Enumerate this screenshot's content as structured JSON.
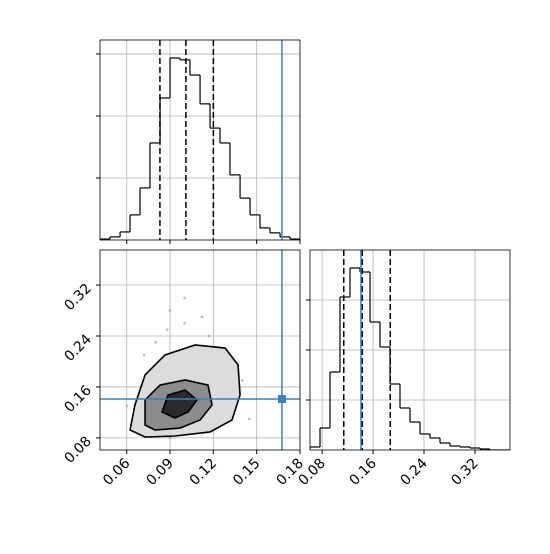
{
  "chart_data": [
    {
      "type": "histogram",
      "bins": [
        0.0415,
        0.0484,
        0.0554,
        0.0623,
        0.0692,
        0.0761,
        0.0831,
        0.09,
        0.0969,
        0.1038,
        0.1108,
        0.1177,
        0.1246,
        0.1315,
        0.1385,
        0.1454,
        0.1523,
        0.1592,
        0.1662,
        0.1731,
        0.18
      ],
      "values": [
        3,
        10,
        26,
        81,
        168,
        313,
        458,
        587,
        581,
        532,
        439,
        361,
        313,
        210,
        135,
        81,
        39,
        23,
        10,
        3
      ],
      "color": "#000000",
      "xlim": [
        0.0415,
        0.18
      ],
      "xticks": [
        0.06,
        0.09,
        0.12,
        0.15,
        0.18
      ],
      "ylim": [
        0,
        645
      ],
      "yticks": [
        200,
        400,
        600
      ],
      "tick_labels": false,
      "grid": true,
      "quantiles": [
        0.083,
        0.101,
        0.12
      ],
      "truth": 0.1675,
      "truth_color": "#3f7fb5"
    },
    {
      "type": "scatter",
      "x": [
        0.07,
        0.08,
        0.09,
        0.1,
        0.11,
        0.12,
        0.13,
        0.095,
        0.105,
        0.085,
        0.115,
        0.075,
        0.125,
        0.135,
        0.065,
        0.1,
        0.09,
        0.11,
        0.08,
        0.12,
        0.1,
        0.095,
        0.105,
        0.088,
        0.112,
        0.06,
        0.14,
        0.145,
        0.1,
        0.092,
        0.108,
        0.083,
        0.117,
        0.072,
        0.128,
        0.098,
        0.102,
        0.09,
        0.11,
        0.1
      ],
      "y": [
        0.12,
        0.15,
        0.1,
        0.13,
        0.16,
        0.11,
        0.14,
        0.2,
        0.22,
        0.09,
        0.19,
        0.17,
        0.1,
        0.13,
        0.11,
        0.26,
        0.08,
        0.09,
        0.23,
        0.18,
        0.16,
        0.14,
        0.12,
        0.25,
        0.27,
        0.13,
        0.17,
        0.11,
        0.3,
        0.19,
        0.21,
        0.12,
        0.24,
        0.21,
        0.2,
        0.11,
        0.15,
        0.28,
        0.13,
        0.085
      ],
      "color": "#9a9a9a",
      "contours": [
        {
          "x": [
            0.0623,
            0.0657,
            0.0727,
            0.0865,
            0.1073,
            0.1281,
            0.1371,
            0.1385,
            0.1329,
            0.1177,
            0.0934,
            0.0727,
            0.0623
          ],
          "y": [
            0.0924,
            0.1317,
            0.1788,
            0.2102,
            0.2259,
            0.2211,
            0.1945,
            0.1474,
            0.1081,
            0.0893,
            0.083,
            0.0814,
            0.0924
          ]
        },
        {
          "x": [
            0.0727,
            0.0727,
            0.0831,
            0.1004,
            0.1163,
            0.1191,
            0.1108,
            0.0969,
            0.0796,
            0.0727
          ],
          "y": [
            0.1003,
            0.1395,
            0.163,
            0.1709,
            0.163,
            0.1317,
            0.1081,
            0.0955,
            0.0924,
            0.1003
          ]
        },
        {
          "x": [
            0.0844,
            0.0886,
            0.1004,
            0.1087,
            0.1025,
            0.0934,
            0.0844
          ],
          "y": [
            0.1207,
            0.1474,
            0.1552,
            0.1395,
            0.1207,
            0.1112,
            0.1207
          ]
        }
      ],
      "contour_fills": [
        "#dcdcdc",
        "#8c8c8c",
        "#2a2a2a"
      ],
      "xlim": [
        0.0415,
        0.18
      ],
      "xticks": [
        0.06,
        0.09,
        0.12,
        0.15,
        0.18
      ],
      "ylim": [
        0.061,
        0.375
      ],
      "yticks": [
        0.08,
        0.16,
        0.24,
        0.32
      ],
      "tick_labels": true,
      "grid": true,
      "truth": [
        0.1675,
        0.141
      ],
      "truth_color": "#3f7fb5"
    },
    {
      "type": "histogram",
      "bins": [
        0.061,
        0.0767,
        0.0924,
        0.1081,
        0.1238,
        0.1395,
        0.1552,
        0.1709,
        0.1866,
        0.2023,
        0.218,
        0.2337,
        0.2494,
        0.2651,
        0.2808,
        0.2965,
        0.3122,
        0.3279,
        0.3436,
        0.3593,
        0.375
      ],
      "values": [
        12,
        88,
        312,
        612,
        728,
        712,
        512,
        412,
        264,
        168,
        112,
        64,
        48,
        28,
        16,
        12,
        8,
        4,
        0,
        0
      ],
      "color": "#000000",
      "xlim": [
        0.061,
        0.375
      ],
      "xticks": [
        0.08,
        0.16,
        0.24,
        0.32
      ],
      "ylim": [
        0,
        800
      ],
      "yticks": [
        200,
        400,
        600
      ],
      "tick_labels": true,
      "ytick_labels": false,
      "grid": true,
      "quantiles": [
        0.114,
        0.143,
        0.187
      ],
      "truth": 0.141,
      "truth_color": "#3f7fb5"
    }
  ]
}
